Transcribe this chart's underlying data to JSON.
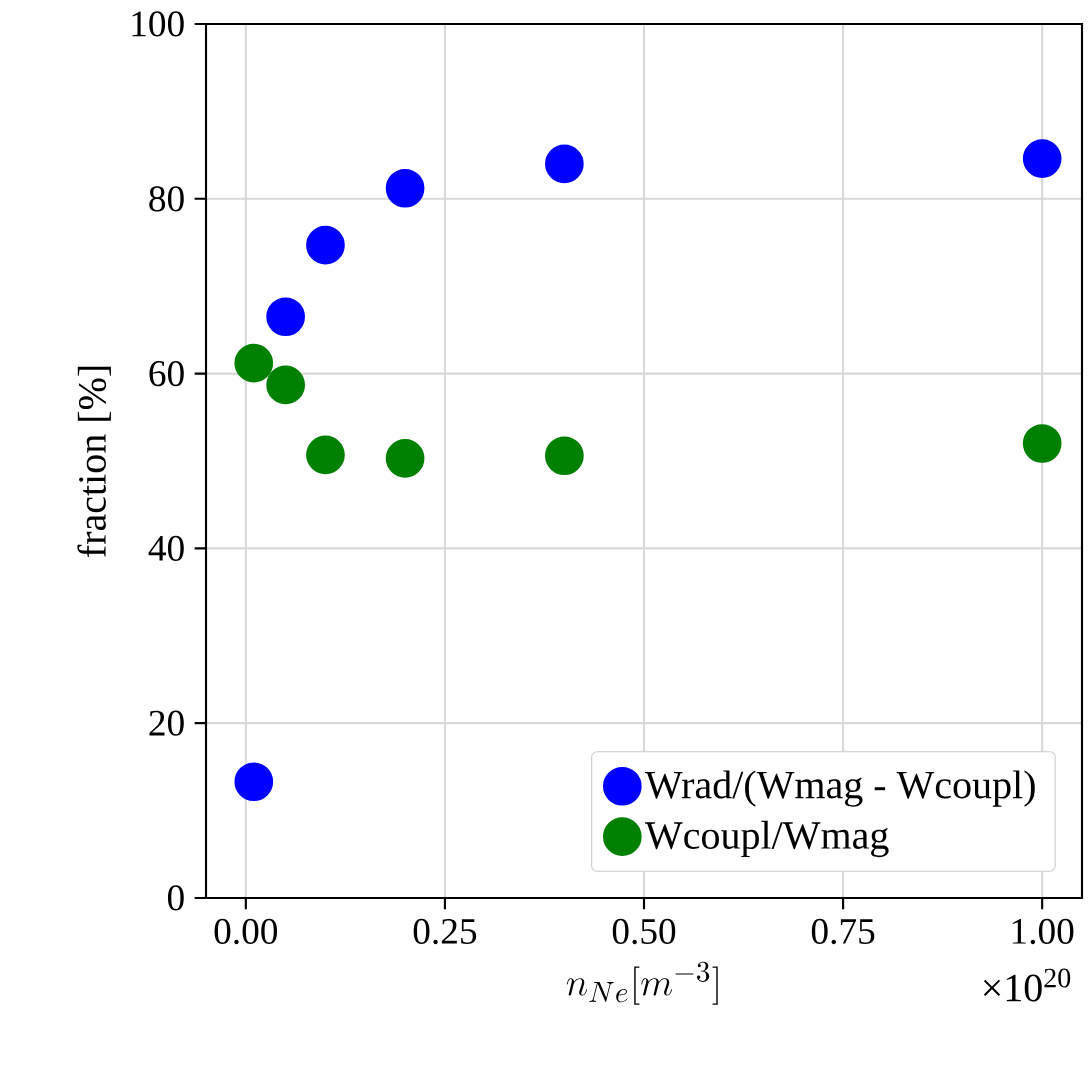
{
  "chart_data": {
    "type": "scatter",
    "xlabel": "n_{Ne}[m^{-3}]",
    "ylabel": "fraction [%]",
    "annotations": [
      "×10$^{20}$"
    ],
    "xlim": [
      -0.05,
      1.05
    ],
    "ylim": [
      0,
      100
    ],
    "xticks": [
      {
        "value": 0,
        "label": "0.00"
      },
      {
        "value": 0.25,
        "label": "0.25"
      },
      {
        "value": 0.5,
        "label": "0.50"
      },
      {
        "value": 0.75,
        "label": "0.75"
      },
      {
        "value": 1,
        "label": "1.00"
      }
    ],
    "yticks": [
      0,
      20,
      40,
      60,
      80,
      100
    ],
    "grid": true,
    "legend": "bottom right",
    "marker": "circle",
    "x": [
      0.01,
      0.05,
      0.1,
      0.2,
      0.4,
      1.0
    ],
    "series": [
      {
        "name": "Wrad/(Wmag - Wcoupl)",
        "color": "#0000ff",
        "values": [
          13.3,
          66.5,
          74.7,
          81.2,
          84.0,
          84.6
        ]
      },
      {
        "name": "Wcoupl/Wmag",
        "color": "#008000",
        "values": [
          61.2,
          58.7,
          50.7,
          50.3,
          50.6,
          52.0
        ]
      }
    ]
  }
}
